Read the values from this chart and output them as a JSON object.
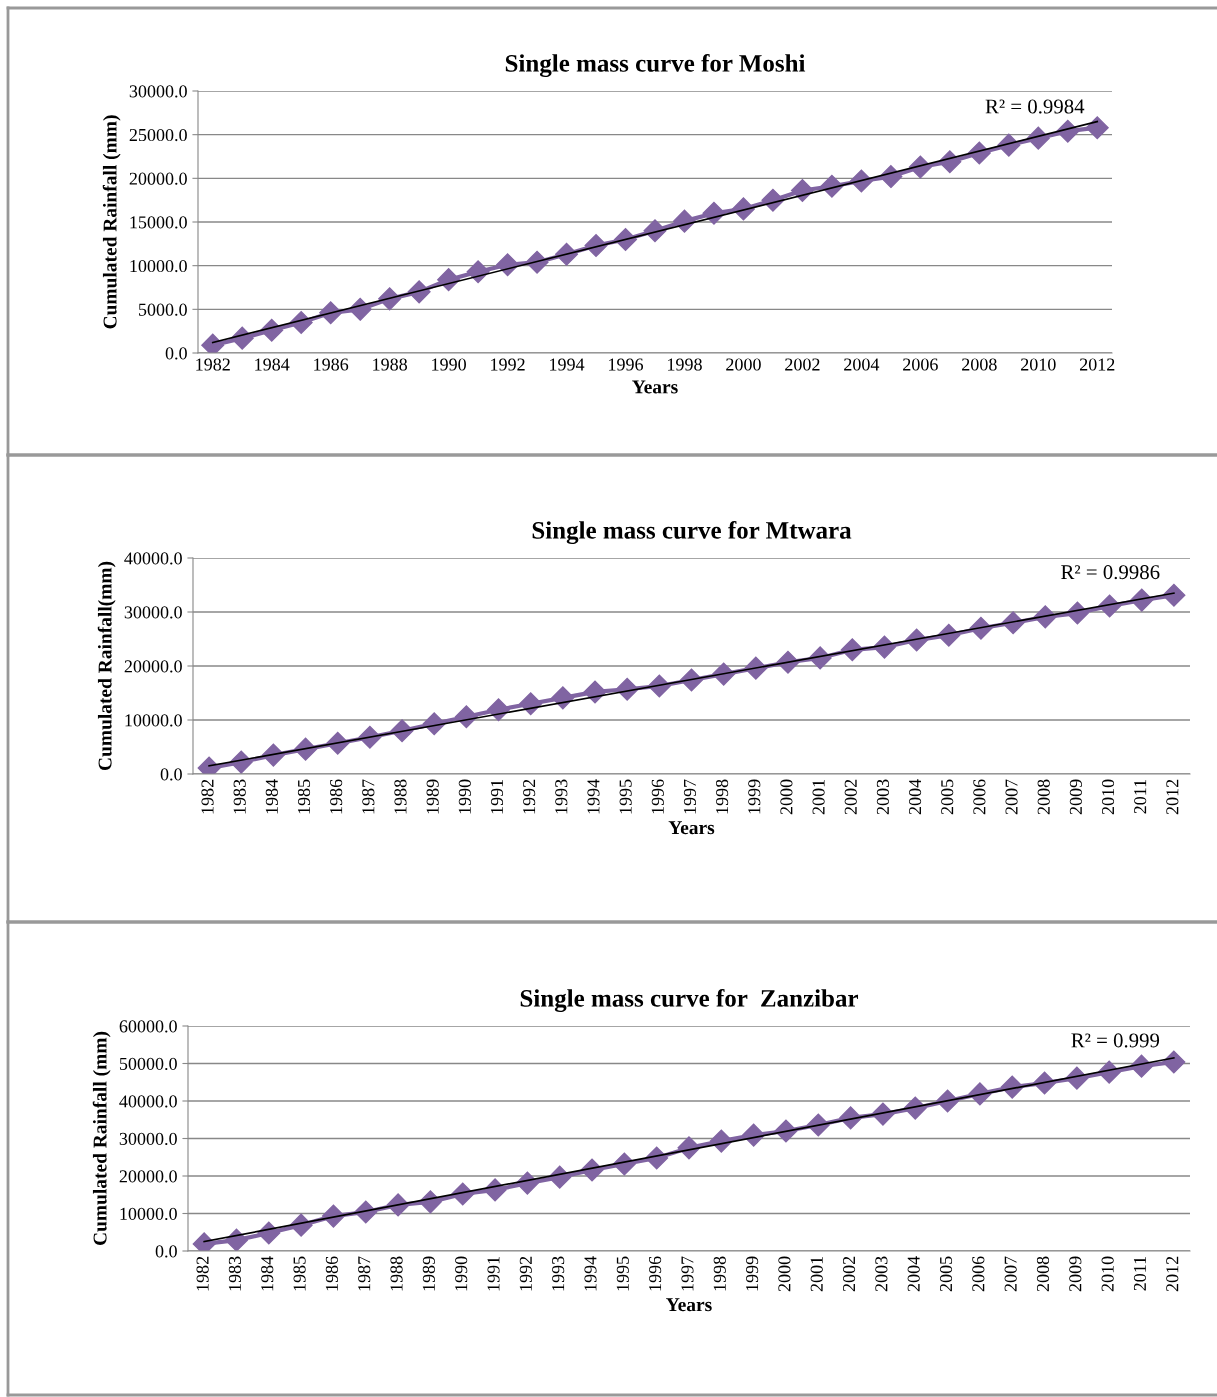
{
  "chart_data": [
    {
      "type": "line",
      "title": "Single mass curve for Moshi",
      "xlabel": "Years",
      "ylabel": "Cumulated Rainfall (mm)",
      "categories": [
        "1982",
        null,
        "1984",
        null,
        "1986",
        null,
        "1988",
        null,
        "1990",
        null,
        "1992",
        null,
        "1994",
        null,
        "1996",
        null,
        "1998",
        null,
        "2000",
        null,
        "2002",
        null,
        "2004",
        null,
        "2006",
        null,
        "2008",
        null,
        "2010",
        null,
        "2012"
      ],
      "series": [
        {
          "color": "#8064a2",
          "marker": "diamond",
          "values": [
            900,
            1700,
            2600,
            3500,
            4600,
            5000,
            6200,
            7000,
            8400,
            9300,
            10100,
            10400,
            11300,
            12300,
            13000,
            14000,
            15100,
            16000,
            16500,
            17500,
            18600,
            19100,
            19700,
            20200,
            21300,
            21900,
            22900,
            23800,
            24600,
            25400,
            25800
          ]
        },
        {
          "type": "line",
          "color": "#000000",
          "marker": "none",
          "values": [
            1200,
            null,
            null,
            null,
            null,
            null,
            null,
            null,
            null,
            null,
            null,
            null,
            null,
            null,
            null,
            null,
            null,
            null,
            null,
            null,
            null,
            null,
            null,
            null,
            null,
            null,
            null,
            null,
            null,
            null,
            26500
          ]
        }
      ],
      "ylim": [
        0,
        30000
      ],
      "yticks": [
        {
          "value": 0,
          "label": "0.0"
        },
        {
          "value": 5000,
          "label": "5000.0"
        },
        {
          "value": 10000,
          "label": "10000.0"
        },
        {
          "value": 15000,
          "label": "15000.0"
        },
        {
          "value": 20000,
          "label": "20000.0"
        },
        {
          "value": 25000,
          "label": "25000.0"
        },
        {
          "value": 30000,
          "label": "30000.0"
        }
      ],
      "grid": "y",
      "annotations": [
        "R² = 0.9984"
      ]
    },
    {
      "type": "line",
      "title": "Single mass curve for Mtwara",
      "xlabel": "Years",
      "ylabel": "Cumulated Rainfall(mm)",
      "categories": [
        "1982",
        "1983",
        "1984",
        "1985",
        "1986",
        "1987",
        "1988",
        "1989",
        "1990",
        "1991",
        "1992",
        "1993",
        "1994",
        "1995",
        "1996",
        "1997",
        "1998",
        "1999",
        "2000",
        "2001",
        "2002",
        "2003",
        "2004",
        "2005",
        "2006",
        "2007",
        "2008",
        "2009",
        "2010",
        "2011",
        "2012"
      ],
      "series": [
        {
          "color": "#8064a2",
          "marker": "diamond",
          "values": [
            1100,
            2200,
            3500,
            4600,
            5700,
            6800,
            8000,
            9300,
            10600,
            11900,
            13000,
            14100,
            15200,
            15700,
            16300,
            17400,
            18500,
            19600,
            20700,
            21500,
            23000,
            23500,
            24800,
            25700,
            27000,
            28000,
            29100,
            29800,
            31100,
            32200,
            33100
          ]
        },
        {
          "type": "line",
          "color": "#000000",
          "marker": "none",
          "values": [
            1500,
            null,
            null,
            null,
            null,
            null,
            null,
            null,
            null,
            null,
            null,
            null,
            null,
            null,
            null,
            null,
            null,
            null,
            null,
            null,
            null,
            null,
            null,
            null,
            null,
            null,
            null,
            null,
            null,
            null,
            33500
          ]
        }
      ],
      "ylim": [
        0,
        40000
      ],
      "yticks": [
        {
          "value": 0,
          "label": "0.0"
        },
        {
          "value": 10000,
          "label": "10000.0"
        },
        {
          "value": 20000,
          "label": "20000.0"
        },
        {
          "value": 30000,
          "label": "30000.0"
        },
        {
          "value": 40000,
          "label": "40000.0"
        }
      ],
      "grid": "y",
      "annotations": [
        "R² = 0.9986"
      ]
    },
    {
      "type": "line",
      "title": "Single mass curve for  Zanzibar",
      "xlabel": "Years",
      "ylabel": "Cumulated Rainfall (mm)",
      "categories": [
        "1982",
        "1983",
        "1984",
        "1985",
        "1986",
        "1987",
        "1988",
        "1989",
        "1990",
        "1991",
        "1992",
        "1993",
        "1994",
        "1995",
        "1996",
        "1997",
        "1998",
        "1999",
        "2000",
        "2001",
        "2002",
        "2003",
        "2004",
        "2005",
        "2006",
        "2007",
        "2008",
        "2009",
        "2010",
        "2011",
        "2012"
      ],
      "series": [
        {
          "color": "#8064a2",
          "marker": "diamond",
          "values": [
            1900,
            2900,
            4800,
            6900,
            9300,
            10400,
            12300,
            13100,
            15200,
            16300,
            18100,
            19700,
            21600,
            23200,
            24800,
            27500,
            29300,
            30900,
            32000,
            33600,
            35500,
            36500,
            38100,
            40000,
            41900,
            43700,
            44800,
            46100,
            47700,
            49300,
            50400
          ]
        },
        {
          "type": "line",
          "color": "#000000",
          "marker": "none",
          "values": [
            2500,
            null,
            null,
            null,
            null,
            null,
            null,
            null,
            null,
            null,
            null,
            null,
            null,
            null,
            null,
            null,
            null,
            null,
            null,
            null,
            null,
            null,
            null,
            null,
            null,
            null,
            null,
            null,
            null,
            null,
            51500
          ]
        }
      ],
      "ylim": [
        0,
        60000
      ],
      "yticks": [
        {
          "value": 0,
          "label": "0.0"
        },
        {
          "value": 10000,
          "label": "10000.0"
        },
        {
          "value": 20000,
          "label": "20000.0"
        },
        {
          "value": 30000,
          "label": "30000.0"
        },
        {
          "value": 40000,
          "label": "40000.0"
        },
        {
          "value": 50000,
          "label": "50000.0"
        },
        {
          "value": 60000,
          "label": "60000.0"
        }
      ],
      "grid": "y",
      "annotations": [
        "R² = 0.999"
      ]
    }
  ]
}
